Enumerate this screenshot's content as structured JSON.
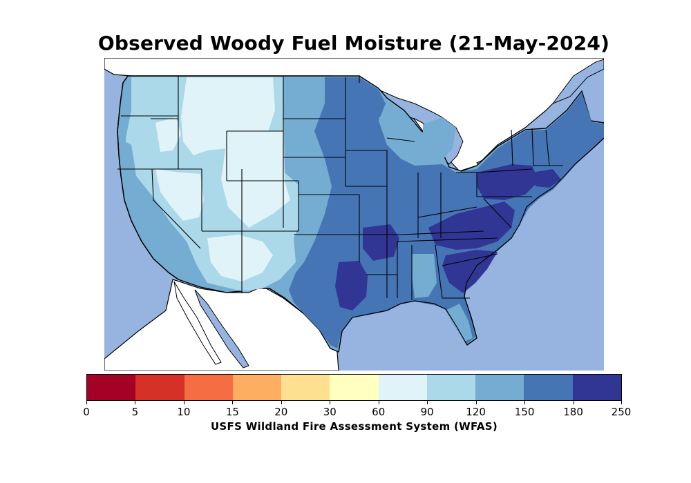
{
  "title": "Observed Woody Fuel Moisture (21-May-2024)",
  "colorbar": {
    "label": "USFS Wildland Fire Assessment System (WFAS)",
    "ticks": [
      "0",
      "5",
      "10",
      "15",
      "20",
      "30",
      "60",
      "90",
      "120",
      "150",
      "180",
      "250"
    ],
    "colors": [
      "#a50026",
      "#d73027",
      "#f46d43",
      "#fdae61",
      "#fee090",
      "#ffffbf",
      "#e0f3f8",
      "#abd9e9",
      "#74add1",
      "#4575b4",
      "#313695"
    ]
  },
  "map": {
    "ocean_color": "#97b4e0",
    "land_outside_color": "#ffffff",
    "border_color": "#000000"
  }
}
